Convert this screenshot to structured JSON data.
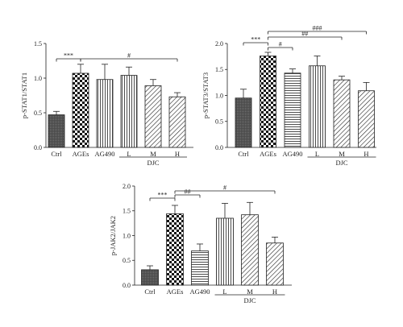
{
  "chart_data": [
    {
      "type": "bar",
      "ylabel": "p-STAT1/STAT1",
      "ylim": [
        0,
        1.5
      ],
      "yticks": [
        "0.0",
        "0.5",
        "1.0",
        "1.5"
      ],
      "categories": [
        "Ctrl",
        "AGEs",
        "AG490",
        "L",
        "M",
        "H"
      ],
      "group_label": "DJC",
      "values": [
        0.47,
        1.07,
        0.98,
        1.04,
        0.89,
        0.73
      ],
      "errors": [
        0.05,
        0.13,
        0.22,
        0.12,
        0.09,
        0.06
      ],
      "patterns": [
        "dense",
        "checker",
        "vlines",
        "vlines",
        "diag",
        "diag"
      ],
      "significance": [
        {
          "from": 0,
          "to": 1,
          "label": "***"
        },
        {
          "from": 1,
          "to": 5,
          "label": "#"
        }
      ]
    },
    {
      "type": "bar",
      "ylabel": "p-STAT3/STAT3",
      "ylim": [
        0,
        2.0
      ],
      "yticks": [
        "0.0",
        "0.5",
        "1.0",
        "1.5",
        "2.0"
      ],
      "categories": [
        "Ctrl",
        "AGEs",
        "AG490",
        "L",
        "M",
        "H"
      ],
      "group_label": "DJC",
      "values": [
        0.95,
        1.76,
        1.43,
        1.57,
        1.3,
        1.09
      ],
      "errors": [
        0.17,
        0.07,
        0.08,
        0.19,
        0.07,
        0.16
      ],
      "patterns": [
        "dense",
        "checker",
        "hlines",
        "vlines",
        "diag",
        "diag"
      ],
      "significance": [
        {
          "from": 0,
          "to": 1,
          "label": "***"
        },
        {
          "from": 1,
          "to": 2,
          "label": "#"
        },
        {
          "from": 1,
          "to": 4,
          "label": "##"
        },
        {
          "from": 1,
          "to": 5,
          "label": "###"
        }
      ]
    },
    {
      "type": "bar",
      "ylabel": "p-JAK2/JAK2",
      "ylim": [
        0,
        2.0
      ],
      "yticks": [
        "0.0",
        "0.5",
        "1.0",
        "1.5",
        "2.0"
      ],
      "categories": [
        "Ctrl",
        "AGEs",
        "AG490",
        "L",
        "M",
        "H"
      ],
      "group_label": "DJC",
      "values": [
        0.31,
        1.44,
        0.69,
        1.35,
        1.42,
        0.85
      ],
      "errors": [
        0.08,
        0.17,
        0.14,
        0.3,
        0.25,
        0.12
      ],
      "patterns": [
        "dense",
        "checker",
        "hlines",
        "vlines",
        "diag",
        "diag"
      ],
      "significance": [
        {
          "from": 0,
          "to": 1,
          "label": "***"
        },
        {
          "from": 1,
          "to": 2,
          "label": "##"
        },
        {
          "from": 1,
          "to": 5,
          "label": "#"
        }
      ]
    }
  ]
}
